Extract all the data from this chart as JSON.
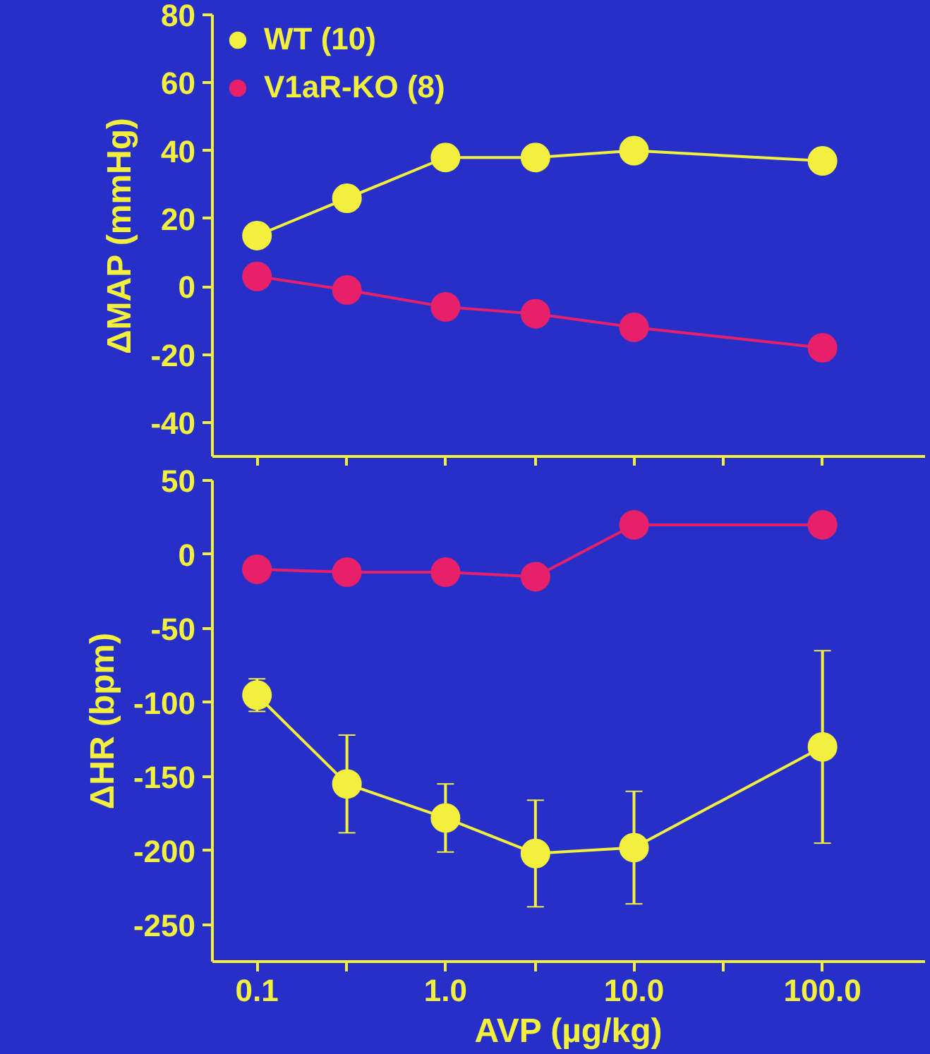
{
  "chart_data": [
    {
      "type": "line",
      "ylabel": "ΔMAP (mmHg)",
      "x": [
        0.1,
        0.3,
        1,
        3,
        10,
        100
      ],
      "xlim": [
        0.058,
        350
      ],
      "xticks": [
        {
          "value": 0.1,
          "label": null
        },
        {
          "value": 0.3,
          "label": null
        },
        {
          "value": 1,
          "label": null
        },
        {
          "value": 3,
          "label": null
        },
        {
          "value": 10,
          "label": null
        },
        {
          "value": 30,
          "label": null
        },
        {
          "value": 100,
          "label": null
        }
      ],
      "log": "x",
      "ylim": [
        -50,
        80
      ],
      "yticks": [
        -40,
        -20,
        0,
        20,
        40,
        60,
        80
      ],
      "tick_labels": "y",
      "legend": "top left",
      "marker": "circle",
      "grid": false,
      "series": [
        {
          "name": "WT (10)",
          "color": "#f2f03c",
          "values": [
            15,
            26,
            38,
            38,
            40,
            37
          ]
        },
        {
          "name": "V1aR-KO (8)",
          "color": "#e8206a",
          "values": [
            3,
            -1,
            -6,
            -8,
            -12,
            -18
          ]
        }
      ]
    },
    {
      "type": "line",
      "ylabel": "ΔHR (bpm)",
      "xlabel": "AVP (µg/kg)",
      "x": [
        0.1,
        0.3,
        1,
        3,
        10,
        100
      ],
      "xlim": [
        0.058,
        350
      ],
      "xticks": [
        {
          "value": 0.1,
          "label": "0.1"
        },
        {
          "value": 0.3,
          "label": null
        },
        {
          "value": 1,
          "label": "1.0"
        },
        {
          "value": 3,
          "label": null
        },
        {
          "value": 10,
          "label": "10.0"
        },
        {
          "value": 30,
          "label": null
        },
        {
          "value": 100,
          "label": "100.0"
        }
      ],
      "log": "x",
      "ylim": [
        -275,
        50
      ],
      "yticks": [
        -250,
        -200,
        -150,
        -100,
        -50,
        0,
        50
      ],
      "marker": "circle",
      "grid": false,
      "series": [
        {
          "color": "#e8206a",
          "values": [
            -10,
            -12,
            -12,
            -15,
            20,
            20
          ]
        },
        {
          "color": "#f2f03c",
          "values": [
            -95,
            -155,
            -178,
            -202,
            -198,
            -130
          ],
          "errors": [
            11,
            33,
            23,
            36,
            38,
            65
          ]
        }
      ]
    }
  ]
}
